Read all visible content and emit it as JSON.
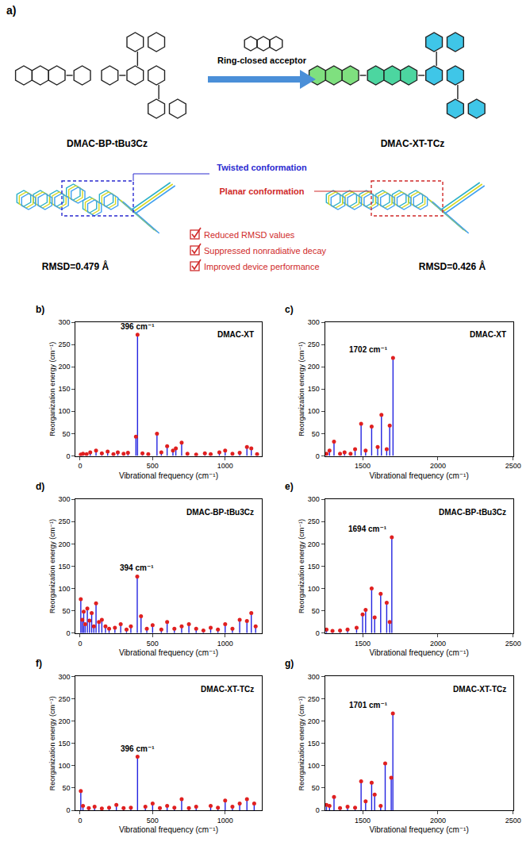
{
  "panel_a": {
    "label": "a)",
    "left_molecule": "DMAC-BP-tBu3Cz",
    "right_molecule": "DMAC-XT-TCz",
    "arrow_label": "Ring-closed acceptor",
    "left_conformation": "Twisted conformation",
    "right_conformation": "Planar conformation",
    "left_rmsd": "RMSD=0.479 Å",
    "right_rmsd": "RMSD=0.426 Å",
    "checklist": [
      "Reduced RMSD values",
      "Suppressed nonradiative decay",
      "Improved device performance"
    ]
  },
  "chart_data": [
    {
      "type": "stem",
      "panel_label": "b)",
      "title": "DMAC-XT",
      "color": "#2424e0",
      "x": [
        5,
        20,
        45,
        70,
        110,
        150,
        190,
        230,
        260,
        300,
        330,
        385,
        396,
        430,
        470,
        530,
        560,
        600,
        640,
        660,
        700,
        740,
        800,
        860,
        900,
        960,
        1000,
        1050,
        1100,
        1150,
        1180,
        1220
      ],
      "values": [
        3,
        5,
        4,
        8,
        12,
        6,
        10,
        4,
        8,
        5,
        7,
        43,
        272,
        6,
        4,
        50,
        8,
        22,
        12,
        17,
        30,
        5,
        3,
        6,
        4,
        8,
        12,
        5,
        7,
        20,
        17,
        4
      ],
      "annotations": [
        {
          "x": 396,
          "y": 272,
          "text": "396 cm⁻¹"
        }
      ],
      "xlabel": "Vibrational frequency (cm⁻¹)",
      "ylabel": "Reorganization energy (cm⁻¹)",
      "xlim": [
        -30,
        1250
      ],
      "xticks": [
        0,
        500,
        1000
      ],
      "ylim": [
        0,
        300
      ],
      "yticks": [
        0,
        50,
        100,
        150,
        200,
        250,
        300
      ]
    },
    {
      "type": "stem",
      "panel_label": "c)",
      "title": "DMAC-XT",
      "color": "#2424e0",
      "x": [
        1260,
        1280,
        1310,
        1350,
        1380,
        1420,
        1450,
        1490,
        1520,
        1560,
        1600,
        1625,
        1660,
        1680,
        1702
      ],
      "values": [
        5,
        12,
        32,
        5,
        8,
        5,
        15,
        72,
        12,
        66,
        20,
        92,
        15,
        68,
        220
      ],
      "annotations": [
        {
          "x": 1702,
          "y": 220,
          "text": "1702 cm⁻¹"
        }
      ],
      "xlabel": "Vibrational frequency (cm⁻¹)",
      "ylabel": "Reorganization energy (cm⁻¹)",
      "xlim": [
        1250,
        2500
      ],
      "xticks": [
        1500,
        2000,
        2500
      ],
      "ylim": [
        0,
        300
      ],
      "yticks": [
        0,
        50,
        100,
        150,
        200,
        250,
        300
      ]
    },
    {
      "type": "stem",
      "panel_label": "d)",
      "title": "DMAC-BP-tBu3Cz",
      "color": "#2424e0",
      "x": [
        5,
        15,
        25,
        35,
        50,
        65,
        80,
        95,
        110,
        130,
        150,
        175,
        200,
        240,
        280,
        320,
        350,
        394,
        420,
        460,
        500,
        560,
        600,
        650,
        700,
        750,
        800,
        850,
        900,
        950,
        1000,
        1050,
        1100,
        1150,
        1180,
        1210
      ],
      "values": [
        76,
        30,
        48,
        20,
        55,
        28,
        45,
        15,
        67,
        25,
        30,
        15,
        10,
        12,
        20,
        8,
        15,
        127,
        38,
        10,
        18,
        8,
        25,
        10,
        15,
        20,
        10,
        6,
        12,
        8,
        20,
        10,
        30,
        27,
        45,
        15
      ],
      "annotations": [
        {
          "x": 394,
          "y": 127,
          "text": "394 cm⁻¹"
        }
      ],
      "xlabel": "Vibrational frequency (cm⁻¹)",
      "ylabel": "Reorganization energy (cm⁻¹)",
      "xlim": [
        -30,
        1250
      ],
      "xticks": [
        0,
        500,
        1000
      ],
      "ylim": [
        0,
        300
      ],
      "yticks": [
        0,
        50,
        100,
        150,
        200,
        250,
        300
      ]
    },
    {
      "type": "stem",
      "panel_label": "e)",
      "title": "DMAC-BP-tBu3Cz",
      "color": "#2424e0",
      "x": [
        1260,
        1300,
        1350,
        1400,
        1460,
        1500,
        1520,
        1560,
        1580,
        1620,
        1660,
        1680,
        1694
      ],
      "values": [
        8,
        5,
        6,
        8,
        12,
        42,
        52,
        100,
        35,
        88,
        68,
        25,
        215
      ],
      "annotations": [
        {
          "x": 1694,
          "y": 215,
          "text": "1694 cm⁻¹"
        }
      ],
      "xlabel": "Vibrational frequency (cm⁻¹)",
      "ylabel": "Reorganization energy (cm⁻¹)",
      "xlim": [
        1250,
        2500
      ],
      "xticks": [
        1500,
        2000,
        2500
      ],
      "ylim": [
        0,
        300
      ],
      "yticks": [
        0,
        50,
        100,
        150,
        200,
        250,
        300
      ]
    },
    {
      "type": "stem",
      "panel_label": "f)",
      "title": "DMAC-XT-TCz",
      "color": "#2424e0",
      "x": [
        5,
        20,
        60,
        100,
        150,
        200,
        250,
        300,
        350,
        396,
        450,
        500,
        550,
        600,
        650,
        700,
        750,
        800,
        900,
        950,
        1000,
        1050,
        1100,
        1150,
        1200
      ],
      "values": [
        43,
        10,
        5,
        8,
        4,
        6,
        12,
        5,
        6,
        120,
        8,
        15,
        5,
        10,
        6,
        25,
        5,
        8,
        10,
        6,
        22,
        8,
        15,
        25,
        15
      ],
      "annotations": [
        {
          "x": 396,
          "y": 120,
          "text": "396 cm⁻¹"
        }
      ],
      "xlabel": "Vibrational frequency (cm⁻¹)",
      "ylabel": "Reorganization energy (cm⁻¹)",
      "xlim": [
        -30,
        1250
      ],
      "xticks": [
        0,
        500,
        1000
      ],
      "ylim": [
        0,
        300
      ],
      "yticks": [
        0,
        50,
        100,
        150,
        200,
        250,
        300
      ]
    },
    {
      "type": "stem",
      "panel_label": "g)",
      "title": "DMAC-XT-TCz",
      "color": "#2424e0",
      "x": [
        1260,
        1280,
        1310,
        1350,
        1400,
        1450,
        1490,
        1520,
        1560,
        1580,
        1620,
        1650,
        1690,
        1701
      ],
      "values": [
        12,
        10,
        30,
        5,
        8,
        6,
        65,
        20,
        62,
        35,
        10,
        105,
        73,
        217
      ],
      "annotations": [
        {
          "x": 1701,
          "y": 217,
          "text": "1701 cm⁻¹"
        }
      ],
      "xlabel": "Vibrational frequency (cm⁻¹)",
      "ylabel": "Reorganization energy (cm⁻¹)",
      "xlim": [
        1250,
        2500
      ],
      "xticks": [
        1500,
        2000,
        2500
      ],
      "ylim": [
        0,
        300
      ],
      "yticks": [
        0,
        50,
        100,
        150,
        200,
        250,
        300
      ]
    }
  ]
}
